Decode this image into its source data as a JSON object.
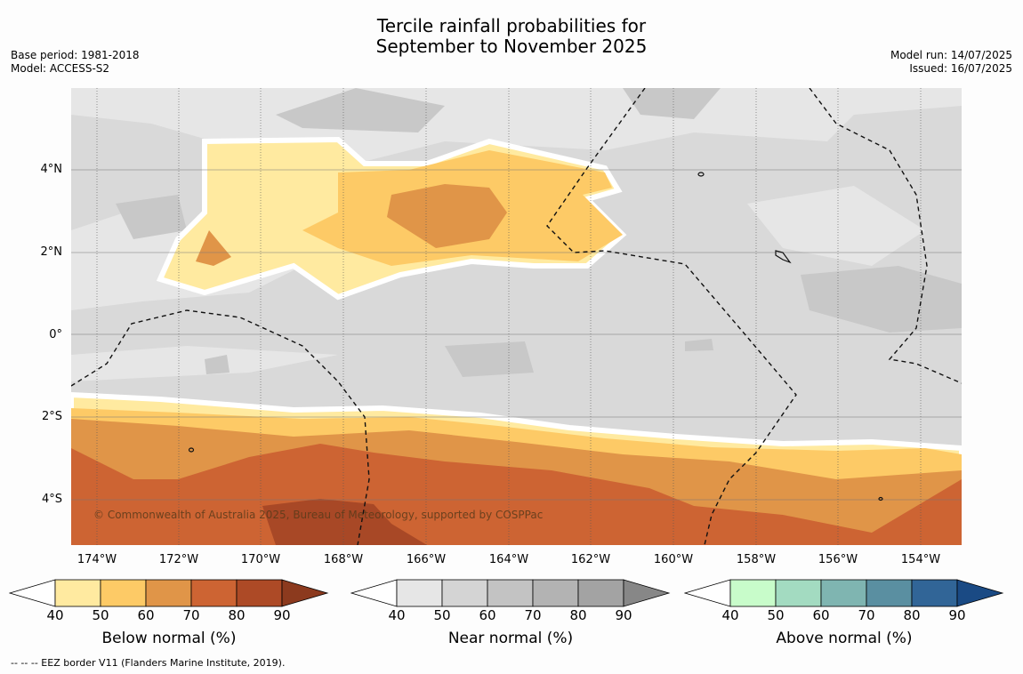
{
  "header": {
    "title_line1": "Tercile rainfall probabilities for",
    "title_line2": "September to November 2025",
    "base_period": "Base period: 1981-2018",
    "model": "Model: ACCESS-S2",
    "model_run": "Model run: 14/07/2025",
    "issued": "Issued: 16/07/2025"
  },
  "map": {
    "lat_labels": [
      "4°N",
      "2°N",
      "0°",
      "2°S",
      "4°S"
    ],
    "lon_labels": [
      "174°W",
      "172°W",
      "170°W",
      "168°W",
      "166°W",
      "164°W",
      "162°W",
      "160°W",
      "158°W",
      "156°W",
      "154°W"
    ],
    "credit": "© Commonwealth of Australia 2025, Bureau of Meteorology, supported by COSPPac",
    "colors": {
      "background_near": "#d9d9d9",
      "near_50": "#e6e6e6",
      "near_60": "#c8c8c8",
      "below_40": "#ffeaa0",
      "below_50": "#fdca66",
      "below_60": "#e09548",
      "below_70": "#cd6433",
      "below_80": "#a84826"
    }
  },
  "legends": [
    {
      "label": "Below normal (%)",
      "ticks": [
        "40",
        "50",
        "60",
        "70",
        "80",
        "90"
      ],
      "colors": [
        "#ffffff",
        "#ffeaa0",
        "#fdca66",
        "#e09548",
        "#cd6433",
        "#ad4a26",
        "#8c3a1e"
      ]
    },
    {
      "label": "Near normal (%)",
      "ticks": [
        "40",
        "50",
        "60",
        "70",
        "80",
        "90"
      ],
      "colors": [
        "#ffffff",
        "#e6e6e6",
        "#d4d4d4",
        "#c3c3c3",
        "#b3b3b3",
        "#a3a3a3",
        "#878787"
      ]
    },
    {
      "label": "Above normal (%)",
      "ticks": [
        "40",
        "50",
        "60",
        "70",
        "80",
        "90"
      ],
      "colors": [
        "#ffffff",
        "#c8fcca",
        "#a3dbc1",
        "#7fb5b1",
        "#5a8fa1",
        "#316597",
        "#1a4a84"
      ]
    }
  ],
  "footnote": "-- -- -- EEZ border V11 (Flanders Marine Institute, 2019)."
}
